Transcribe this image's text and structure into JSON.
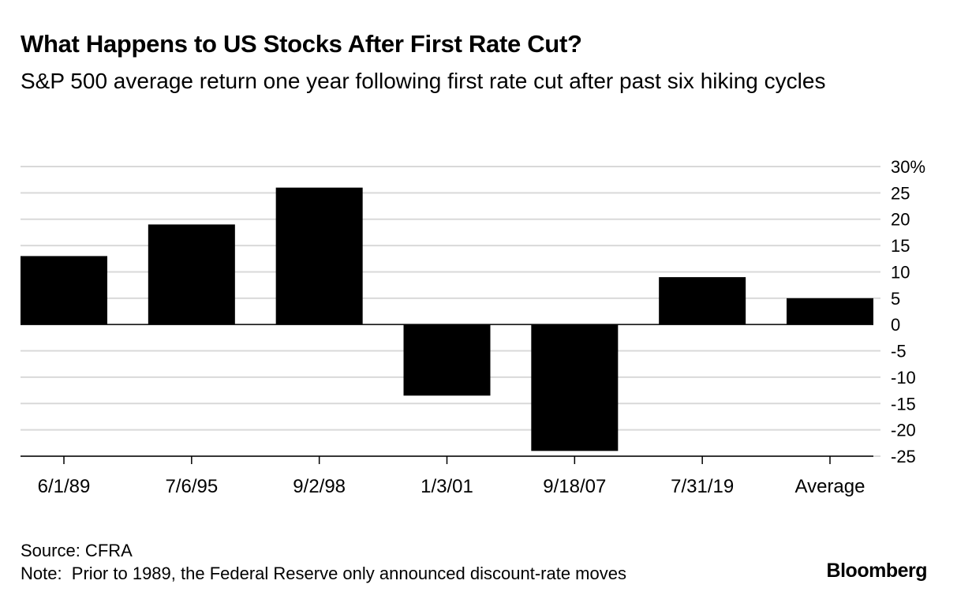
{
  "chart_data": {
    "type": "bar",
    "title": "What Happens to US Stocks After First Rate Cut?",
    "subtitle": "S&P 500 average return one year following first rate cut after past six hiking cycles",
    "categories": [
      "6/1/89",
      "7/6/95",
      "9/2/98",
      "1/3/01",
      "9/18/07",
      "7/31/19",
      "Average"
    ],
    "values": [
      13,
      19,
      26,
      -13.5,
      -24,
      9,
      5
    ],
    "ylim": [
      -25,
      30
    ],
    "yticks": [
      30,
      25,
      20,
      15,
      10,
      5,
      0,
      -5,
      -10,
      -15,
      -20,
      -25
    ],
    "ytick_labels": [
      "30%",
      "25",
      "20",
      "15",
      "10",
      "5",
      "0",
      "-5",
      "-10",
      "-15",
      "-20",
      "-25"
    ],
    "bar_color": "#000000",
    "grid": true,
    "grid_color": "#d9d9d9",
    "axis_position": "right",
    "source": "Source: CFRA",
    "note": "Note:  Prior to 1989, the Federal Reserve only announced discount-rate moves"
  },
  "branding": {
    "logo_text": "Bloomberg"
  }
}
